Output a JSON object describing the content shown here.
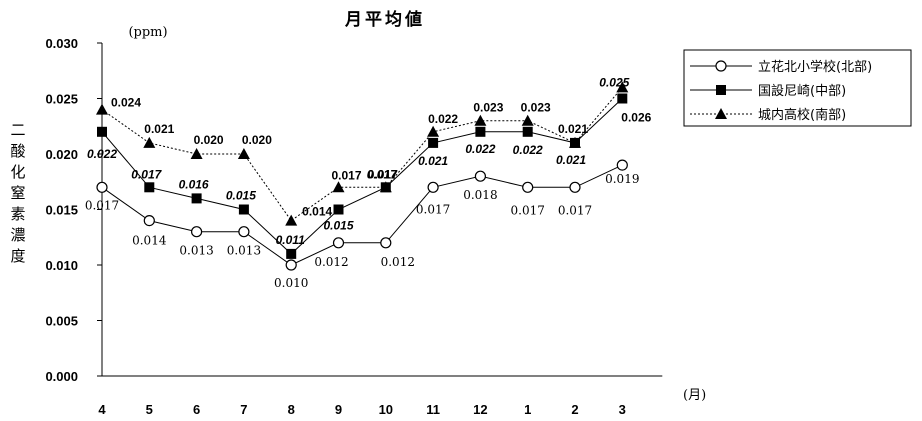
{
  "chart_data": {
    "type": "line",
    "title": "月平均値",
    "ylabel": "二酸化窒素濃度",
    "yunit": "(ppm)",
    "xunit": "(月)",
    "categories": [
      "4",
      "5",
      "6",
      "7",
      "8",
      "9",
      "10",
      "11",
      "12",
      "1",
      "2",
      "3"
    ],
    "ylim": [
      0,
      0.03
    ],
    "yticks": [
      "0.000",
      "0.005",
      "0.010",
      "0.015",
      "0.020",
      "0.025",
      "0.030"
    ],
    "legend_position": "top-right",
    "series": [
      {
        "name": "立花北小学校(北部)",
        "values": [
          0.017,
          0.014,
          0.013,
          0.013,
          0.01,
          0.012,
          0.012,
          0.017,
          0.018,
          0.017,
          0.017,
          0.019
        ],
        "labels": [
          "0.017",
          "0.014",
          "0.013",
          "0.013",
          "0.010",
          "0.012",
          "0.012",
          "0.017",
          "0.018",
          "0.017",
          "0.017",
          "0.019"
        ]
      },
      {
        "name": "国設尼崎(中部)",
        "values": [
          0.022,
          0.017,
          0.016,
          0.015,
          0.011,
          0.015,
          0.017,
          0.021,
          0.022,
          0.022,
          0.021,
          0.025
        ],
        "labels": [
          "0.022",
          "0.017",
          "0.016",
          "0.015",
          "0.011",
          "0.015",
          "0.017",
          "0.021",
          "0.022",
          "0.022",
          "0.021",
          "0.025"
        ]
      },
      {
        "name": "城内高校(南部)",
        "values": [
          0.024,
          0.021,
          0.02,
          0.02,
          0.014,
          0.017,
          0.017,
          0.022,
          0.023,
          0.023,
          0.021,
          0.026
        ],
        "labels": [
          "0.024",
          "0.021",
          "0.020",
          "0.020",
          "0.014",
          "0.017",
          "0.017",
          "0.022",
          "0.023",
          "0.023",
          "0.021",
          "0.026"
        ]
      }
    ]
  }
}
